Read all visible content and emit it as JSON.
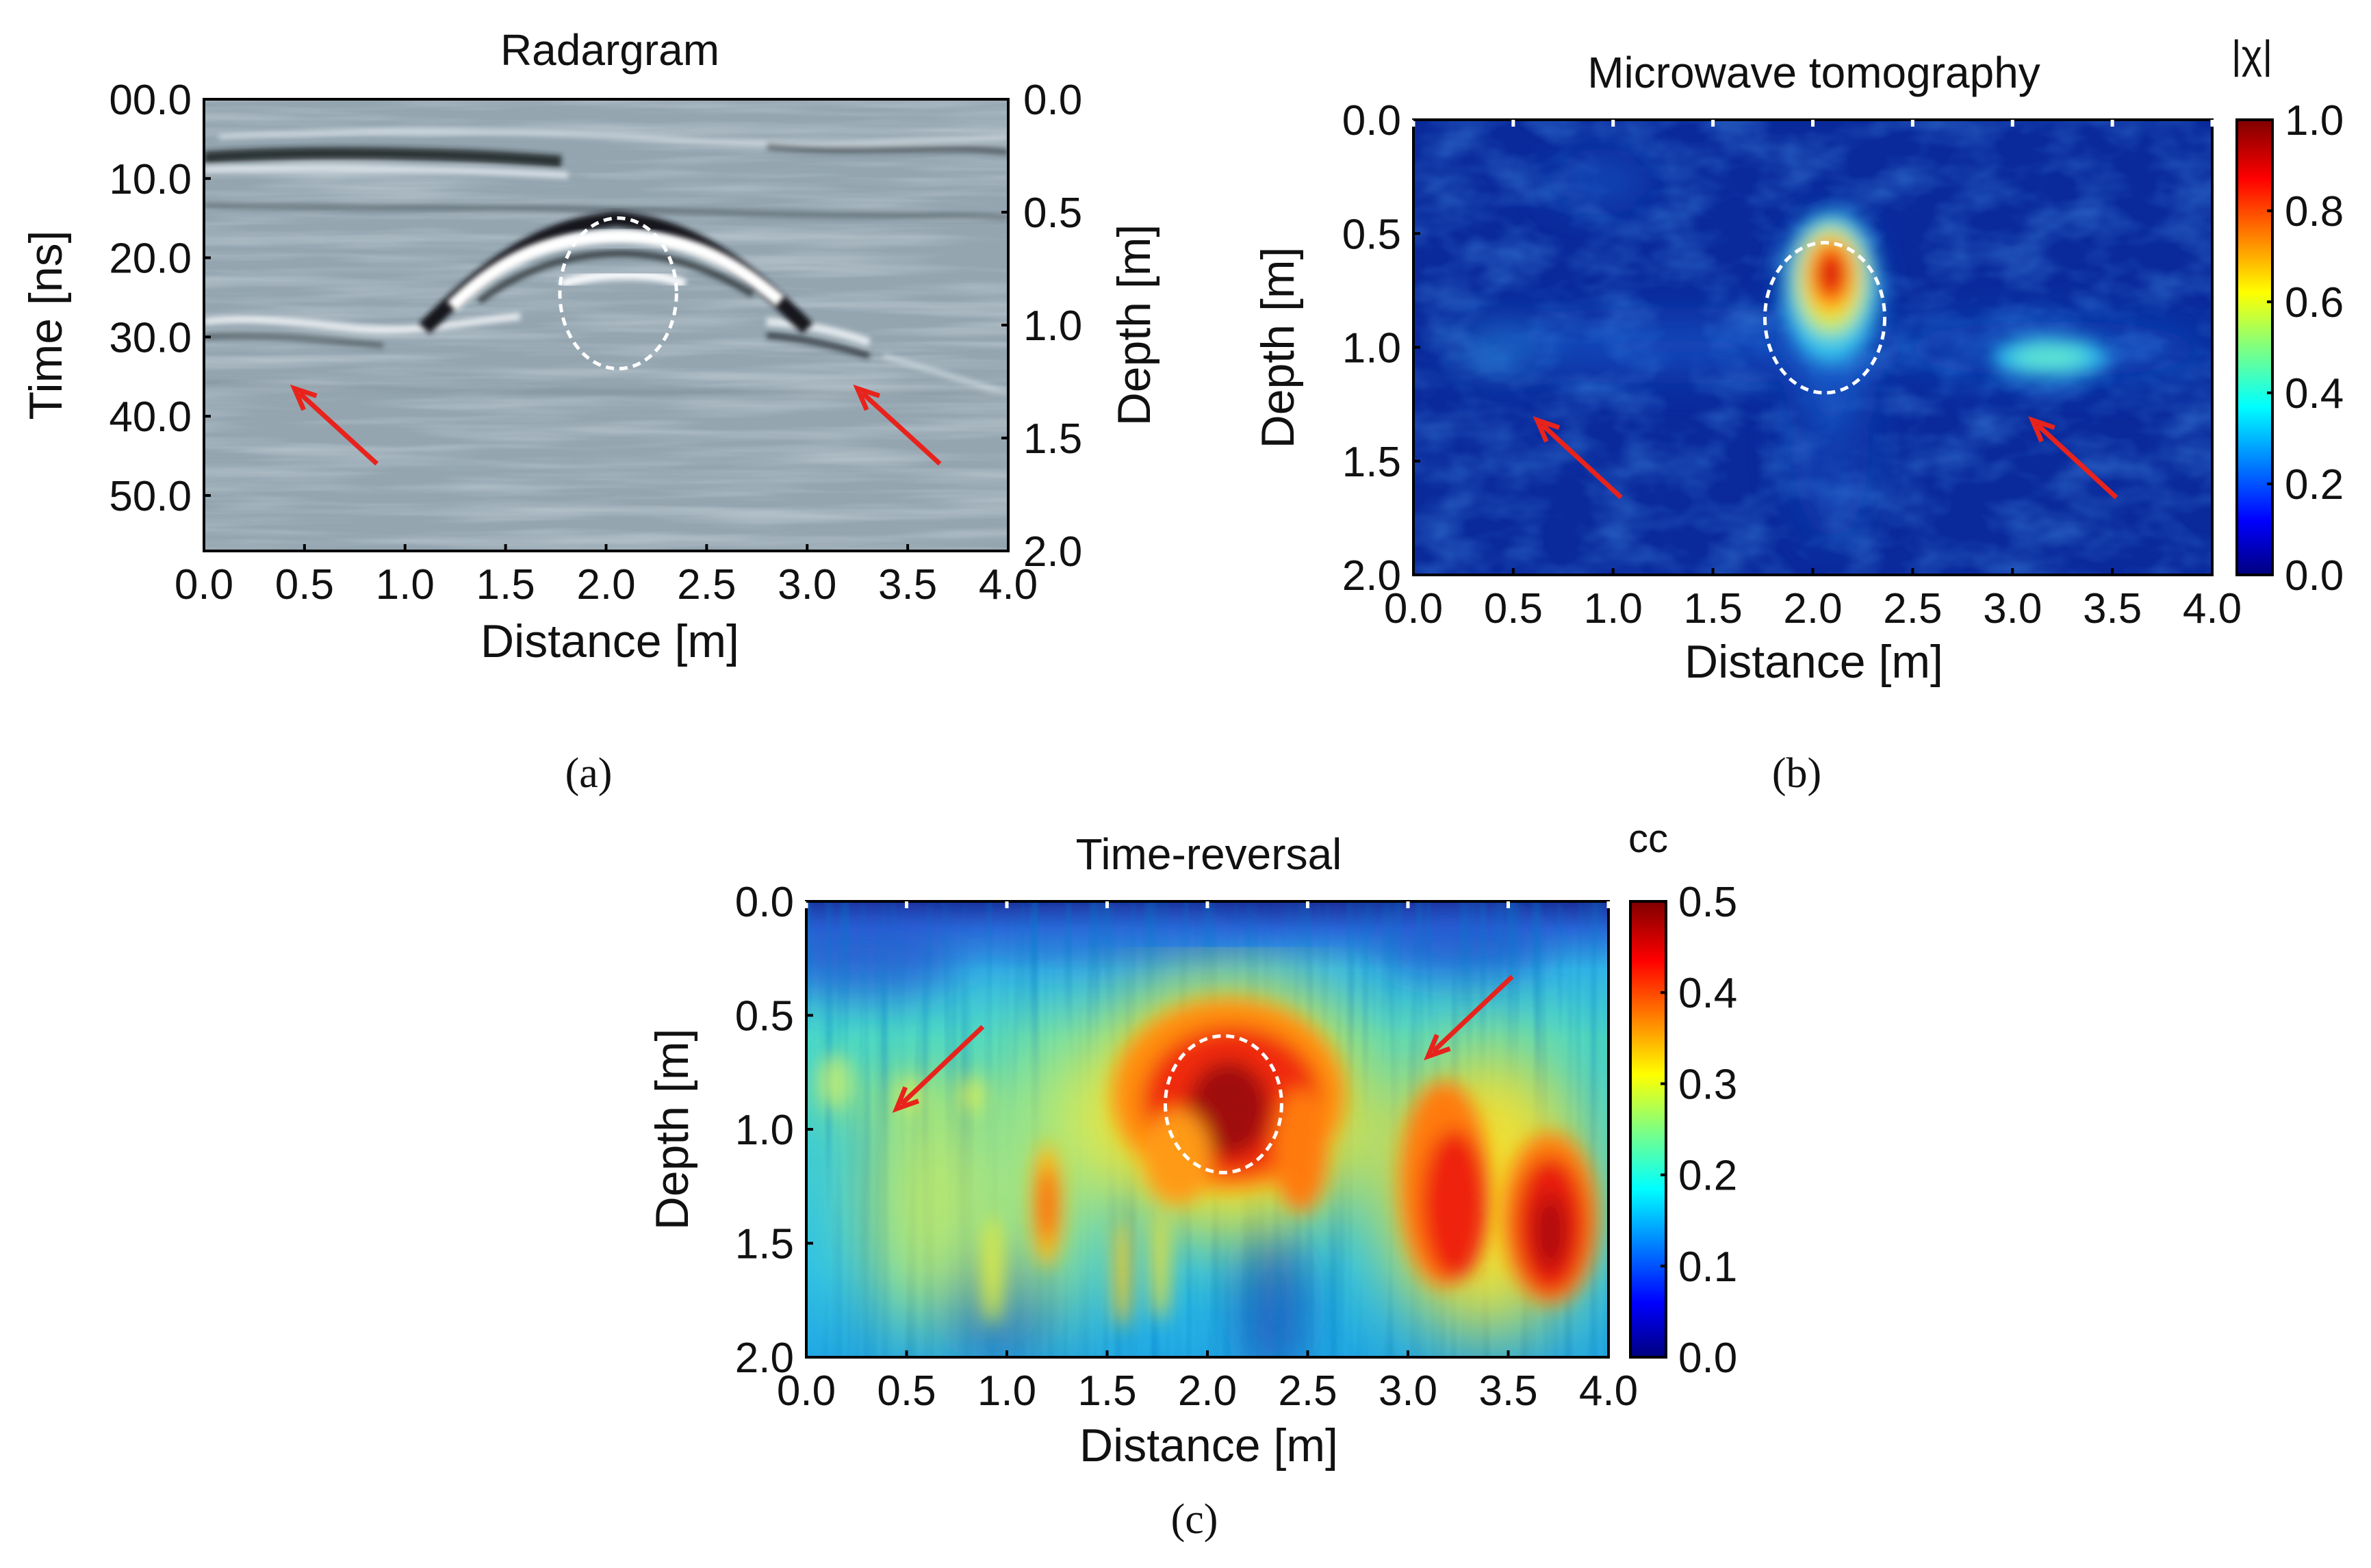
{
  "chart_data": [
    {
      "id": "a",
      "type": "heatmap",
      "title": "Radargram",
      "panel_label": "(a)",
      "xlabel": "Distance [m]",
      "ylabel": "Time [ns]",
      "y2label": "Depth [m]",
      "xlim": [
        0.0,
        4.0
      ],
      "ylim": [
        0.0,
        57.0
      ],
      "y2lim": [
        0.0,
        2.0
      ],
      "x_ticks": [
        "0.0",
        "0.5",
        "1.0",
        "1.5",
        "2.0",
        "2.5",
        "3.0",
        "3.5",
        "4.0"
      ],
      "x_tick_values": [
        0.0,
        0.5,
        1.0,
        1.5,
        2.0,
        2.5,
        3.0,
        3.5,
        4.0
      ],
      "y_ticks": [
        "00.0",
        "10.0",
        "20.0",
        "30.0",
        "40.0",
        "50.0"
      ],
      "y_tick_values": [
        0,
        10,
        20,
        30,
        40,
        50
      ],
      "y2_ticks": [
        "0.0",
        "0.5",
        "1.0",
        "1.5",
        "2.0"
      ],
      "y2_tick_values": [
        0.0,
        0.5,
        1.0,
        1.5,
        2.0
      ],
      "colormap": "grayscale",
      "annotations": [
        {
          "type": "ellipse",
          "cx": 2.06,
          "cy": 24.5,
          "rx": 0.29,
          "ry": 9.5,
          "style": "white-dashed"
        },
        {
          "type": "arrow",
          "from": [
            0.86,
            46.0
          ],
          "to": [
            0.45,
            36.5
          ],
          "color": "red"
        },
        {
          "type": "arrow",
          "from": [
            3.66,
            46.0
          ],
          "to": [
            3.25,
            36.5
          ],
          "color": "red"
        }
      ]
    },
    {
      "id": "b",
      "type": "heatmap",
      "title": "Microwave tomography",
      "panel_label": "(b)",
      "xlabel": "Distance [m]",
      "ylabel": "Depth [m]",
      "xlim": [
        0.0,
        4.0
      ],
      "ylim": [
        0.0,
        2.0
      ],
      "x_ticks": [
        "0.0",
        "0.5",
        "1.0",
        "1.5",
        "2.0",
        "2.5",
        "3.0",
        "3.5",
        "4.0"
      ],
      "x_tick_values": [
        0.0,
        0.5,
        1.0,
        1.5,
        2.0,
        2.5,
        3.0,
        3.5,
        4.0
      ],
      "y_ticks": [
        "0.0",
        "0.5",
        "1.0",
        "1.5",
        "2.0"
      ],
      "y_tick_values": [
        0.0,
        0.5,
        1.0,
        1.5,
        2.0
      ],
      "colormap": "jet",
      "colorbar_label": "|χ|",
      "colorbar_ticks": [
        "1.0",
        "0.8",
        "0.6",
        "0.4",
        "0.2",
        "0.0"
      ],
      "colorbar_tick_values": [
        1.0,
        0.8,
        0.6,
        0.4,
        0.2,
        0.0
      ],
      "colorbar_range": [
        0.0,
        1.0
      ],
      "features": [
        {
          "x": 2.06,
          "y": 0.72,
          "value": 1.0
        },
        {
          "x": 3.02,
          "y": 1.04,
          "value": 0.38
        }
      ],
      "annotations": [
        {
          "type": "ellipse",
          "cx": 2.06,
          "cy": 0.87,
          "rx": 0.3,
          "ry": 0.33,
          "style": "white-dashed"
        },
        {
          "type": "arrow",
          "from": [
            1.04,
            1.66
          ],
          "to": [
            0.62,
            1.32
          ],
          "color": "red"
        },
        {
          "type": "arrow",
          "from": [
            3.52,
            1.66
          ],
          "to": [
            3.1,
            1.32
          ],
          "color": "red"
        }
      ]
    },
    {
      "id": "c",
      "type": "heatmap",
      "title": "Time-reversal",
      "panel_label": "(c)",
      "xlabel": "Distance [m]",
      "ylabel": "Depth [m]",
      "xlim": [
        0.0,
        4.0
      ],
      "ylim": [
        0.0,
        2.0
      ],
      "x_ticks": [
        "0.0",
        "0.5",
        "1.0",
        "1.5",
        "2.0",
        "2.5",
        "3.0",
        "3.5",
        "4.0"
      ],
      "x_tick_values": [
        0.0,
        0.5,
        1.0,
        1.5,
        2.0,
        2.5,
        3.0,
        3.5,
        4.0
      ],
      "y_ticks": [
        "0.0",
        "0.5",
        "1.0",
        "1.5",
        "2.0"
      ],
      "y_tick_values": [
        0.0,
        0.5,
        1.0,
        1.5,
        2.0
      ],
      "colormap": "jet",
      "colorbar_label": "cc",
      "colorbar_ticks": [
        "0.5",
        "0.4",
        "0.3",
        "0.2",
        "0.1",
        "0.0"
      ],
      "colorbar_tick_values": [
        0.5,
        0.4,
        0.3,
        0.2,
        0.1,
        0.0
      ],
      "colorbar_range": [
        0.0,
        0.5
      ],
      "features": [
        {
          "x": 2.07,
          "y": 0.88,
          "value": 0.5
        },
        {
          "x": 3.2,
          "y": 1.4,
          "value": 0.45
        },
        {
          "x": 3.72,
          "y": 1.45,
          "value": 0.47
        },
        {
          "x": 1.2,
          "y": 1.2,
          "value": 0.38
        }
      ],
      "annotations": [
        {
          "type": "ellipse",
          "cx": 2.08,
          "cy": 0.89,
          "rx": 0.29,
          "ry": 0.3,
          "style": "white-dashed"
        },
        {
          "type": "arrow",
          "from": [
            0.88,
            0.55
          ],
          "to": [
            0.45,
            0.91
          ],
          "color": "red"
        },
        {
          "type": "arrow",
          "from": [
            3.52,
            0.33
          ],
          "to": [
            3.1,
            0.68
          ],
          "color": "red"
        }
      ]
    }
  ],
  "colors": {
    "arrow": "#e8231c",
    "circle": "#ffffff",
    "radar_base": "#94a5b0",
    "jet": [
      "#00007f",
      "#0000ff",
      "#0080ff",
      "#00ffff",
      "#80ff80",
      "#ffff00",
      "#ff8000",
      "#ff0000",
      "#7f0000"
    ]
  }
}
